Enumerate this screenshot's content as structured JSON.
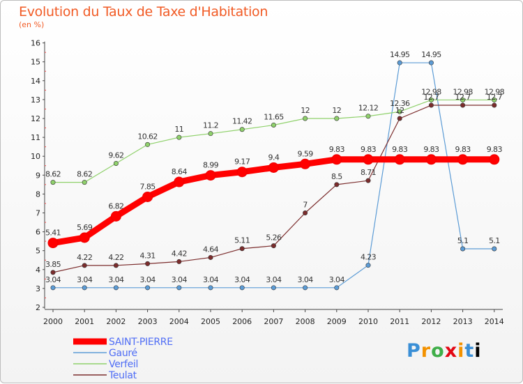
{
  "chart_data": {
    "type": "line",
    "title": "Evolution du Taux de Taxe d'Habitation",
    "subtitle": "(en %)",
    "x": [
      "2000",
      "2001",
      "2002",
      "2003",
      "2004",
      "2005",
      "2006",
      "2007",
      "2008",
      "2009",
      "2010",
      "2011",
      "2012",
      "2013",
      "2014"
    ],
    "ylim": [
      2,
      16
    ],
    "yticks": [
      2,
      3,
      4,
      5,
      6,
      7,
      8,
      9,
      10,
      11,
      12,
      13,
      14,
      15,
      16
    ],
    "grid": false,
    "legend_position": "bottom-left",
    "series": [
      {
        "name": "SAINT-PIERRE",
        "color": "#ff0000",
        "legend_text_color": "#4f6df5",
        "values": [
          5.41,
          5.69,
          6.82,
          7.85,
          8.64,
          8.99,
          9.17,
          9.4,
          9.59,
          9.83,
          9.83,
          9.83,
          9.83,
          9.83,
          9.83
        ],
        "labels": [
          "5.41",
          "5.69",
          "6.82",
          "7.85",
          "8.64",
          "8.99",
          "9.17",
          "9.4",
          "9.59",
          "9.83",
          "9.83",
          "9.83",
          "9.83",
          "9.83",
          "9.83"
        ]
      },
      {
        "name": "Gauré",
        "color": "#5b9bd5",
        "legend_text_color": "#4f6df5",
        "values": [
          3.04,
          3.04,
          3.04,
          3.04,
          3.04,
          3.04,
          3.04,
          3.04,
          3.04,
          3.04,
          4.23,
          14.95,
          14.95,
          5.1,
          5.1
        ],
        "labels": [
          "3.04",
          "3.04",
          "3.04",
          "3.04",
          "3.04",
          "3.04",
          "3.04",
          "3.04",
          "3.04",
          "3.04",
          "4.23",
          "14.95",
          "14.95",
          "5.1",
          "5.1"
        ]
      },
      {
        "name": "Verfeil",
        "color": "#8fd16b",
        "legend_text_color": "#4f6df5",
        "values": [
          8.62,
          8.62,
          9.62,
          10.62,
          11,
          11.2,
          11.42,
          11.65,
          12,
          12,
          12.12,
          12.36,
          12.98,
          12.98,
          12.98
        ],
        "labels": [
          "8.62",
          "8.62",
          "9.62",
          "10.62",
          "11",
          "11.2",
          "11.42",
          "11.65",
          "12",
          "12",
          "12.12",
          "12.36",
          "12.98",
          "12.98",
          "12.98"
        ]
      },
      {
        "name": "Teulat",
        "color": "#7b2c2c",
        "legend_text_color": "#4f6df5",
        "values": [
          3.85,
          4.22,
          4.22,
          4.31,
          4.42,
          4.64,
          5.11,
          5.26,
          7,
          8.5,
          8.71,
          12,
          12.7,
          12.7,
          12.7
        ],
        "labels": [
          "3.85",
          "4.22",
          "4.22",
          "4.31",
          "4.42",
          "4.64",
          "5.11",
          "5.26",
          "7",
          "8.5",
          "8.71",
          "12",
          "12.7",
          "12.7",
          "12.7"
        ]
      }
    ]
  },
  "logo": {
    "letters": [
      "P",
      "r",
      "o",
      "x",
      "i",
      "t",
      "i"
    ]
  }
}
